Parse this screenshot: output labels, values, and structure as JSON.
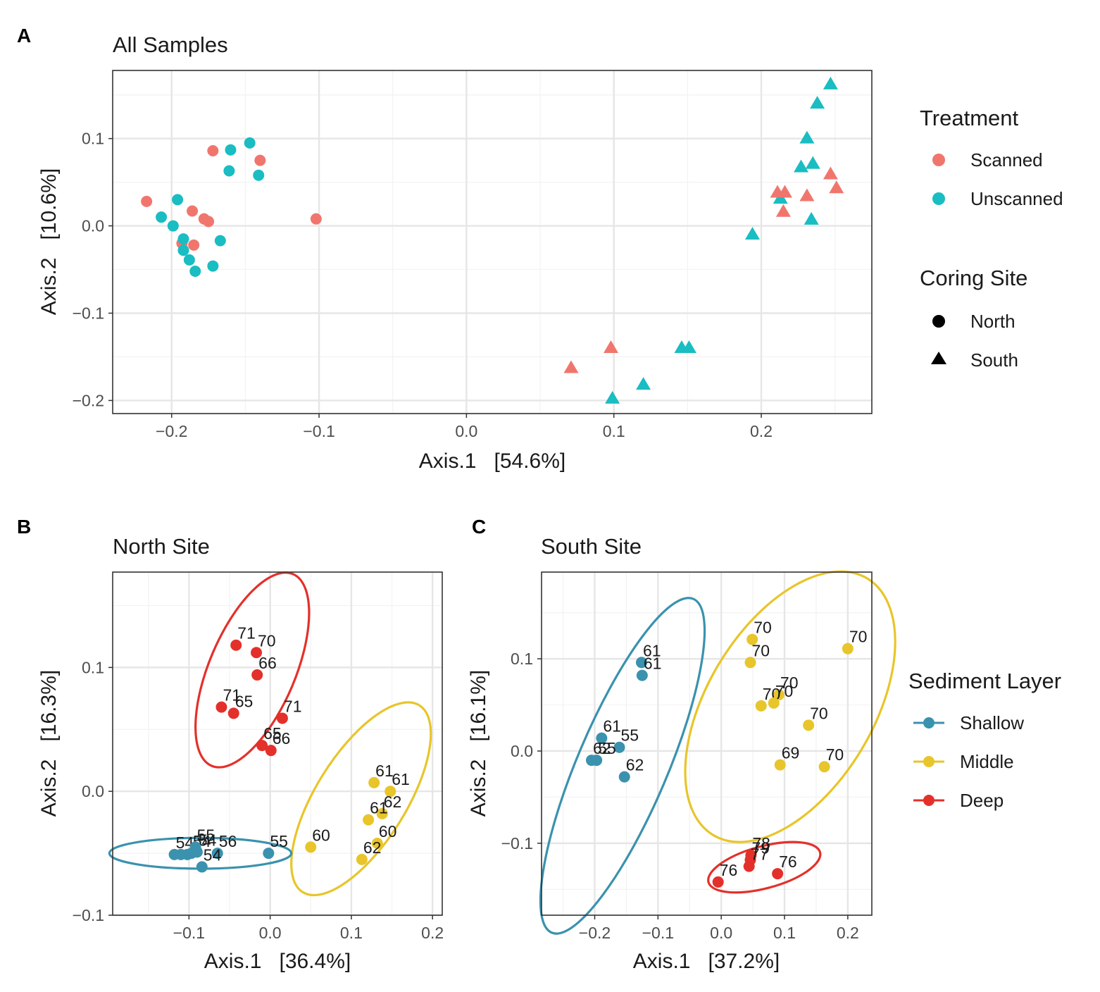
{
  "colors": {
    "scanned": "#F0766D",
    "unscanned": "#19BDC2",
    "shallow": "#3A92AE",
    "middle": "#E8C52A",
    "deep": "#E4302A",
    "grid_major": "#e6e6e6",
    "grid_minor": "#f3f3f3",
    "border": "#333333"
  },
  "chart_data": [
    {
      "panel": "A",
      "type": "scatter",
      "title": "All Samples",
      "xlabel": "Axis.1   [54.6%]",
      "ylabel": "Axis.2   [10.6%]",
      "xlim": [
        -0.24,
        0.275
      ],
      "ylim": [
        -0.215,
        0.178
      ],
      "xticks": [
        -0.2,
        -0.1,
        0.0,
        0.1,
        0.2
      ],
      "xtick_labels": [
        "−0.2",
        "−0.1",
        "0.0",
        "0.1",
        "0.2"
      ],
      "yticks": [
        -0.2,
        -0.1,
        0.0,
        0.1
      ],
      "ytick_labels": [
        "−0.2",
        "−0.1",
        "0.0",
        "0.1"
      ],
      "legends": [
        {
          "title": "Treatment",
          "entries": [
            {
              "label": "Scanned",
              "color": "scanned",
              "shape": "circle"
            },
            {
              "label": "Unscanned",
              "color": "unscanned",
              "shape": "circle"
            }
          ]
        },
        {
          "title": "Coring Site",
          "entries": [
            {
              "label": "North",
              "color": "black",
              "shape": "circle"
            },
            {
              "label": "South",
              "color": "black",
              "shape": "triangle"
            }
          ]
        }
      ],
      "points": [
        {
          "x": -0.217,
          "y": 0.028,
          "treatment": "Scanned",
          "site": "North"
        },
        {
          "x": -0.186,
          "y": 0.017,
          "treatment": "Scanned",
          "site": "North"
        },
        {
          "x": -0.178,
          "y": 0.008,
          "treatment": "Scanned",
          "site": "North"
        },
        {
          "x": -0.175,
          "y": 0.005,
          "treatment": "Scanned",
          "site": "North"
        },
        {
          "x": -0.193,
          "y": -0.02,
          "treatment": "Scanned",
          "site": "North"
        },
        {
          "x": -0.185,
          "y": -0.022,
          "treatment": "Scanned",
          "site": "North"
        },
        {
          "x": -0.172,
          "y": 0.086,
          "treatment": "Scanned",
          "site": "North"
        },
        {
          "x": -0.14,
          "y": 0.075,
          "treatment": "Scanned",
          "site": "North"
        },
        {
          "x": -0.102,
          "y": 0.008,
          "treatment": "Scanned",
          "site": "North"
        },
        {
          "x": -0.16,
          "y": 0.087,
          "treatment": "Unscanned",
          "site": "North"
        },
        {
          "x": -0.147,
          "y": 0.095,
          "treatment": "Unscanned",
          "site": "North"
        },
        {
          "x": -0.161,
          "y": 0.063,
          "treatment": "Unscanned",
          "site": "North"
        },
        {
          "x": -0.141,
          "y": 0.058,
          "treatment": "Unscanned",
          "site": "North"
        },
        {
          "x": -0.196,
          "y": 0.03,
          "treatment": "Unscanned",
          "site": "North"
        },
        {
          "x": -0.207,
          "y": 0.01,
          "treatment": "Unscanned",
          "site": "North"
        },
        {
          "x": -0.199,
          "y": 0.0,
          "treatment": "Unscanned",
          "site": "North"
        },
        {
          "x": -0.192,
          "y": -0.015,
          "treatment": "Unscanned",
          "site": "North"
        },
        {
          "x": -0.192,
          "y": -0.028,
          "treatment": "Unscanned",
          "site": "North"
        },
        {
          "x": -0.167,
          "y": -0.017,
          "treatment": "Unscanned",
          "site": "North"
        },
        {
          "x": -0.188,
          "y": -0.039,
          "treatment": "Unscanned",
          "site": "North"
        },
        {
          "x": -0.172,
          "y": -0.046,
          "treatment": "Unscanned",
          "site": "North"
        },
        {
          "x": -0.184,
          "y": -0.052,
          "treatment": "Unscanned",
          "site": "North"
        },
        {
          "x": 0.247,
          "y": 0.162,
          "treatment": "Unscanned",
          "site": "South"
        },
        {
          "x": 0.238,
          "y": 0.14,
          "treatment": "Unscanned",
          "site": "South"
        },
        {
          "x": 0.231,
          "y": 0.1,
          "treatment": "Unscanned",
          "site": "South"
        },
        {
          "x": 0.235,
          "y": 0.071,
          "treatment": "Unscanned",
          "site": "South"
        },
        {
          "x": 0.227,
          "y": 0.067,
          "treatment": "Unscanned",
          "site": "South"
        },
        {
          "x": 0.213,
          "y": 0.031,
          "treatment": "Unscanned",
          "site": "South"
        },
        {
          "x": 0.234,
          "y": 0.007,
          "treatment": "Unscanned",
          "site": "South"
        },
        {
          "x": 0.194,
          "y": -0.01,
          "treatment": "Unscanned",
          "site": "South"
        },
        {
          "x": 0.146,
          "y": -0.14,
          "treatment": "Unscanned",
          "site": "South"
        },
        {
          "x": 0.151,
          "y": -0.14,
          "treatment": "Unscanned",
          "site": "South"
        },
        {
          "x": 0.12,
          "y": -0.182,
          "treatment": "Unscanned",
          "site": "South"
        },
        {
          "x": 0.099,
          "y": -0.198,
          "treatment": "Unscanned",
          "site": "South"
        },
        {
          "x": 0.247,
          "y": 0.059,
          "treatment": "Scanned",
          "site": "South"
        },
        {
          "x": 0.251,
          "y": 0.043,
          "treatment": "Scanned",
          "site": "South"
        },
        {
          "x": 0.211,
          "y": 0.038,
          "treatment": "Scanned",
          "site": "South"
        },
        {
          "x": 0.216,
          "y": 0.038,
          "treatment": "Scanned",
          "site": "South"
        },
        {
          "x": 0.231,
          "y": 0.034,
          "treatment": "Scanned",
          "site": "South"
        },
        {
          "x": 0.215,
          "y": 0.016,
          "treatment": "Scanned",
          "site": "South"
        },
        {
          "x": 0.098,
          "y": -0.14,
          "treatment": "Scanned",
          "site": "South"
        },
        {
          "x": 0.071,
          "y": -0.163,
          "treatment": "Scanned",
          "site": "South"
        }
      ]
    },
    {
      "panel": "B",
      "type": "scatter",
      "title": "North Site",
      "xlabel": "Axis.1   [36.4%]",
      "ylabel": "Axis.2   [16.3%]",
      "xlim": [
        -0.194,
        0.212
      ],
      "ylim": [
        -0.1,
        0.177
      ],
      "xticks": [
        -0.1,
        0.0,
        0.1,
        0.2
      ],
      "xtick_labels": [
        "−0.1",
        "0.0",
        "0.1",
        "0.2"
      ],
      "yticks": [
        -0.1,
        0.0,
        0.1
      ],
      "ytick_labels": [
        "−0.1",
        "0.0",
        "0.1"
      ],
      "legend": {
        "title": "Sediment Layer",
        "entries": [
          {
            "label": "Shallow",
            "color": "shallow"
          },
          {
            "label": "Middle",
            "color": "middle"
          },
          {
            "label": "Deep",
            "color": "deep"
          }
        ]
      },
      "ellipses": [
        {
          "layer": "Deep",
          "cx": -0.022,
          "cy": 0.098,
          "rx": 0.088,
          "ry": 0.042,
          "angle_deg": 67
        },
        {
          "layer": "Middle",
          "cx": 0.112,
          "cy": -0.006,
          "rx": 0.097,
          "ry": 0.044,
          "angle_deg": 58
        },
        {
          "layer": "Shallow",
          "cx": -0.086,
          "cy": -0.05,
          "rx": 0.112,
          "ry": 0.015,
          "angle_deg": 0
        }
      ],
      "points": [
        {
          "x": -0.042,
          "y": 0.118,
          "layer": "Deep",
          "label": "71"
        },
        {
          "x": -0.017,
          "y": 0.112,
          "layer": "Deep",
          "label": "70"
        },
        {
          "x": -0.016,
          "y": 0.094,
          "layer": "Deep",
          "label": "66"
        },
        {
          "x": -0.06,
          "y": 0.068,
          "layer": "Deep",
          "label": "71"
        },
        {
          "x": -0.045,
          "y": 0.063,
          "layer": "Deep",
          "label": "65"
        },
        {
          "x": 0.015,
          "y": 0.059,
          "layer": "Deep",
          "label": "71"
        },
        {
          "x": -0.01,
          "y": 0.037,
          "layer": "Deep",
          "label": "65"
        },
        {
          "x": 0.001,
          "y": 0.033,
          "layer": "Deep",
          "label": "66"
        },
        {
          "x": 0.128,
          "y": 0.007,
          "layer": "Middle",
          "label": "61"
        },
        {
          "x": 0.148,
          "y": 0.0,
          "layer": "Middle",
          "label": "61"
        },
        {
          "x": 0.138,
          "y": -0.018,
          "layer": "Middle",
          "label": "62"
        },
        {
          "x": 0.121,
          "y": -0.023,
          "layer": "Middle",
          "label": "61"
        },
        {
          "x": 0.132,
          "y": -0.042,
          "layer": "Middle",
          "label": "60"
        },
        {
          "x": 0.05,
          "y": -0.045,
          "layer": "Middle",
          "label": "60"
        },
        {
          "x": 0.113,
          "y": -0.055,
          "layer": "Middle",
          "label": "62"
        },
        {
          "x": -0.118,
          "y": -0.051,
          "layer": "Shallow",
          "label": "54"
        },
        {
          "x": -0.11,
          "y": -0.051,
          "layer": "Shallow",
          "label": ""
        },
        {
          "x": -0.102,
          "y": -0.051,
          "layer": "Shallow",
          "label": ""
        },
        {
          "x": -0.097,
          "y": -0.05,
          "layer": "Shallow",
          "label": "54"
        },
        {
          "x": -0.09,
          "y": -0.049,
          "layer": "Shallow",
          "label": "54"
        },
        {
          "x": -0.065,
          "y": -0.05,
          "layer": "Shallow",
          "label": "56"
        },
        {
          "x": -0.084,
          "y": -0.061,
          "layer": "Shallow",
          "label": "54"
        },
        {
          "x": -0.002,
          "y": -0.05,
          "layer": "Shallow",
          "label": "55"
        },
        {
          "x": -0.092,
          "y": -0.045,
          "layer": "Shallow",
          "label": "55"
        }
      ]
    },
    {
      "panel": "C",
      "type": "scatter",
      "title": "South Site",
      "xlabel": "Axis.1   [37.2%]",
      "ylabel": "Axis.2   [16.1%]",
      "xlim": [
        -0.284,
        0.238
      ],
      "ylim": [
        -0.178,
        0.194
      ],
      "xticks": [
        -0.2,
        -0.1,
        0.0,
        0.1,
        0.2
      ],
      "xtick_labels": [
        "−0.2",
        "−0.1",
        "0.0",
        "0.1",
        "0.2"
      ],
      "yticks": [
        -0.1,
        0.0,
        0.1
      ],
      "ytick_labels": [
        "−0.1",
        "0.0",
        "0.1"
      ],
      "ellipses": [
        {
          "layer": "Shallow",
          "cx": -0.156,
          "cy": -0.016,
          "rx": 0.205,
          "ry": 0.058,
          "angle_deg": 67
        },
        {
          "layer": "Middle",
          "cx": 0.109,
          "cy": 0.048,
          "rx": 0.175,
          "ry": 0.107,
          "angle_deg": 59
        },
        {
          "layer": "Deep",
          "cx": 0.068,
          "cy": -0.126,
          "rx": 0.088,
          "ry": 0.027,
          "angle_deg": 15
        }
      ],
      "points": [
        {
          "x": -0.126,
          "y": 0.096,
          "layer": "Shallow",
          "label": "61"
        },
        {
          "x": -0.125,
          "y": 0.082,
          "layer": "Shallow",
          "label": "61"
        },
        {
          "x": -0.189,
          "y": 0.014,
          "layer": "Shallow",
          "label": "61"
        },
        {
          "x": -0.161,
          "y": 0.004,
          "layer": "Shallow",
          "label": "55"
        },
        {
          "x": -0.205,
          "y": -0.01,
          "layer": "Shallow",
          "label": "62"
        },
        {
          "x": -0.197,
          "y": -0.01,
          "layer": "Shallow",
          "label": "55"
        },
        {
          "x": -0.153,
          "y": -0.028,
          "layer": "Shallow",
          "label": "62"
        },
        {
          "x": 0.049,
          "y": 0.121,
          "layer": "Middle",
          "label": "70"
        },
        {
          "x": 0.046,
          "y": 0.096,
          "layer": "Middle",
          "label": "70"
        },
        {
          "x": 0.2,
          "y": 0.111,
          "layer": "Middle",
          "label": "70"
        },
        {
          "x": 0.091,
          "y": 0.061,
          "layer": "Middle",
          "label": "70"
        },
        {
          "x": 0.063,
          "y": 0.049,
          "layer": "Middle",
          "label": "70"
        },
        {
          "x": 0.083,
          "y": 0.052,
          "layer": "Middle",
          "label": "70"
        },
        {
          "x": 0.138,
          "y": 0.028,
          "layer": "Middle",
          "label": "70"
        },
        {
          "x": 0.093,
          "y": -0.015,
          "layer": "Middle",
          "label": "69"
        },
        {
          "x": 0.163,
          "y": -0.017,
          "layer": "Middle",
          "label": "70"
        },
        {
          "x": -0.005,
          "y": -0.142,
          "layer": "Deep",
          "label": "76"
        },
        {
          "x": 0.047,
          "y": -0.113,
          "layer": "Deep",
          "label": "78"
        },
        {
          "x": 0.046,
          "y": -0.118,
          "layer": "Deep",
          "label": "79"
        },
        {
          "x": 0.044,
          "y": -0.125,
          "layer": "Deep",
          "label": "77"
        },
        {
          "x": 0.089,
          "y": -0.133,
          "layer": "Deep",
          "label": "76"
        }
      ]
    }
  ]
}
